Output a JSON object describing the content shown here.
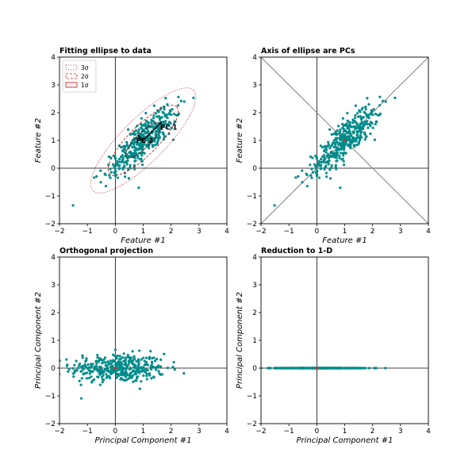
{
  "palette": {
    "points": "#008b8b",
    "axes": "#000000",
    "pc_lines": "#808080",
    "ellipse": "#b22222",
    "center": "#c0392b"
  },
  "chart_data": [
    {
      "type": "scatter",
      "title": "Fitting ellipse to data",
      "xlabel": "Feature #1",
      "ylabel": "Feature #2",
      "xlim": [
        -2,
        4
      ],
      "ylim": [
        -2,
        4
      ],
      "xticks": [
        -2,
        -1,
        0,
        1,
        2,
        3,
        4
      ],
      "yticks": [
        -2,
        -1,
        0,
        1,
        2,
        3,
        4
      ],
      "legend": {
        "placement": "top-left",
        "entries": [
          "3σ",
          "2σ",
          "1σ"
        ]
      },
      "annotations": [
        "PC 1",
        "PC 2"
      ],
      "ellipse": {
        "center": [
          1.0,
          1.0
        ],
        "angle_deg": 45,
        "sigma1": 0.85,
        "sigma2": 0.26
      },
      "point_count": 400
    },
    {
      "type": "scatter",
      "title": "Axis of ellipse are PCs",
      "xlabel": "Feature #1",
      "ylabel": "Feature #2",
      "xlim": [
        -2,
        4
      ],
      "ylim": [
        -2,
        4
      ],
      "xticks": [
        -2,
        -1,
        0,
        1,
        2,
        3,
        4
      ],
      "yticks": [
        -2,
        -1,
        0,
        1,
        2,
        3,
        4
      ],
      "pc_lines": [
        {
          "x": [
            -2,
            4
          ],
          "y": [
            -2,
            4
          ]
        },
        {
          "x": [
            -2,
            4
          ],
          "y": [
            4,
            -2
          ]
        }
      ],
      "point_count": 400
    },
    {
      "type": "scatter",
      "title": "Orthogonal projection",
      "xlabel": "Principal Component #1",
      "ylabel": "Principal Component #2",
      "xlim": [
        -2,
        4
      ],
      "ylim": [
        -2,
        4
      ],
      "xticks": [
        -2,
        -1,
        0,
        1,
        2,
        3,
        4
      ],
      "yticks": [
        -2,
        -1,
        0,
        1,
        2,
        3,
        4
      ],
      "point_count": 400
    },
    {
      "type": "scatter",
      "title": "Reduction to 1-D",
      "xlabel": "Principal Component #1",
      "ylabel": "Principal Component #2",
      "xlim": [
        -2,
        4
      ],
      "ylim": [
        -2,
        4
      ],
      "xticks": [
        -2,
        -1,
        0,
        1,
        2,
        3,
        4
      ],
      "yticks": [
        -2,
        -1,
        0,
        1,
        2,
        3,
        4
      ],
      "point_count": 400
    }
  ]
}
